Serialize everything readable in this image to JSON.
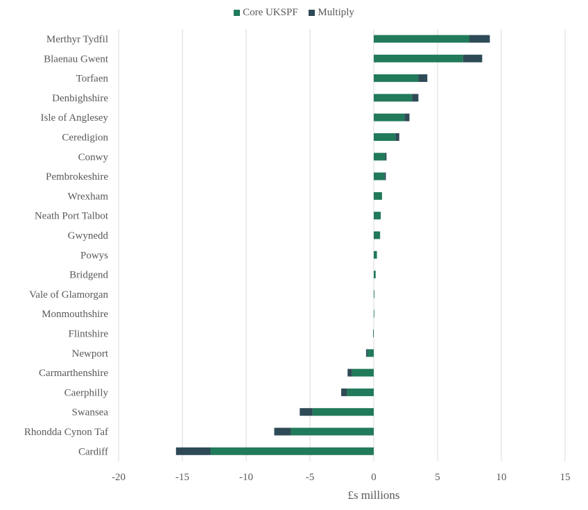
{
  "chart_data": {
    "type": "bar",
    "orientation": "horizontal",
    "stacked": true,
    "title": "",
    "xlabel": "£s millions",
    "ylabel": "",
    "xlim": [
      -20,
      15
    ],
    "xticks": [
      -20,
      -15,
      -10,
      -5,
      0,
      5,
      10,
      15
    ],
    "xtick_labels": [
      "-20",
      "-15",
      "-10",
      "-5",
      "0",
      "5",
      "10",
      "15"
    ],
    "grid": "vertical",
    "legend_position": "top",
    "categories": [
      "Merthyr Tydfil",
      "Blaenau Gwent",
      "Torfaen",
      "Denbighshire",
      "Isle of Anglesey",
      "Ceredigion",
      "Conwy",
      "Pembrokeshire",
      "Wrexham",
      "Neath Port Talbot",
      "Gwynedd",
      "Powys",
      "Bridgend",
      "Vale of Glamorgan",
      "Monmouthshire",
      "Flintshire",
      "Newport",
      "Carmarthenshire",
      "Caerphilly",
      "Swansea",
      "Rhondda Cynon Taf",
      "Cardiff"
    ],
    "series": [
      {
        "name": "Core UKSPF",
        "color": "#217a5a",
        "values": [
          7.5,
          7.0,
          3.5,
          3.0,
          2.4,
          1.7,
          0.9,
          0.85,
          0.65,
          0.55,
          0.5,
          0.25,
          0.15,
          0.05,
          0.02,
          -0.05,
          -0.5,
          -1.7,
          -2.1,
          -4.8,
          -6.5,
          -12.8
        ]
      },
      {
        "name": "Multiply",
        "color": "#2e4a56",
        "values": [
          1.6,
          1.5,
          0.7,
          0.5,
          0.4,
          0.3,
          0.1,
          0.1,
          0.0,
          0.0,
          0.0,
          0.0,
          0.0,
          0.0,
          0.0,
          0.0,
          -0.1,
          -0.35,
          -0.45,
          -1.0,
          -1.3,
          -2.7
        ]
      }
    ]
  }
}
